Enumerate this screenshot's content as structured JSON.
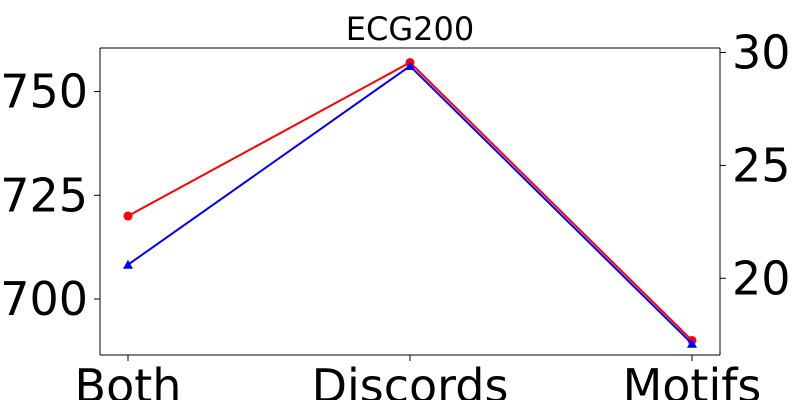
{
  "chart_data": {
    "type": "line",
    "title": "ECG200",
    "categories": [
      "Both",
      "Discords",
      "Motifs"
    ],
    "left_axis": {
      "ylim": [
        686.5,
        760.5
      ],
      "ticks": [
        700,
        725,
        750
      ]
    },
    "right_axis": {
      "ylim": [
        16.6,
        30.2
      ],
      "ticks": [
        20,
        25,
        30
      ]
    },
    "series": [
      {
        "axis": "left",
        "color": "#ff0000",
        "marker": "circle",
        "values": [
          720,
          757,
          690
        ]
      },
      {
        "axis": "right",
        "color": "#0000ff",
        "marker": "triangle",
        "values": [
          20.6,
          29.4,
          17.1
        ]
      }
    ],
    "grid": false
  }
}
